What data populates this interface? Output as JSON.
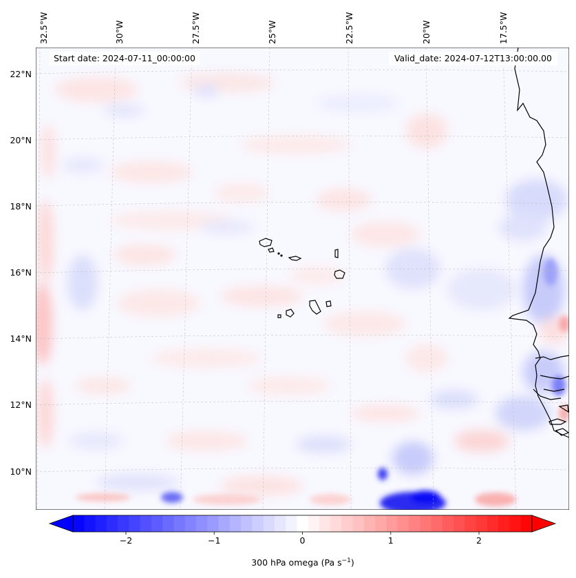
{
  "map": {
    "region": "Eastern tropical Atlantic, Cape Verde Islands and West African coast",
    "variable": "300 hPa omega",
    "start_date_text": "Start date: 2024-07-11_00:00:00",
    "valid_date_text": "Valid_date: 2024-07-12T13:00:00.00",
    "lon_labels": [
      "32.5°W",
      "30°W",
      "27.5°W",
      "25°W",
      "22.5°W",
      "20°W",
      "17.5°W"
    ],
    "lat_labels": [
      "22°N",
      "20°N",
      "18°N",
      "16°N",
      "14°N",
      "12°N",
      "10°N"
    ]
  },
  "colorbar": {
    "label_main": "300 hPa omega (Pa s",
    "label_sup": "−1",
    "label_end": ")",
    "ticks": [
      "−2",
      "−1",
      "0",
      "1",
      "2"
    ],
    "tick_values": [
      -2,
      -1,
      0,
      1,
      2
    ],
    "vmin": -2.6,
    "vmax": 2.6,
    "colors": {
      "min": "#0000ff",
      "mid": "#ffffff",
      "max": "#ff0000"
    }
  }
}
